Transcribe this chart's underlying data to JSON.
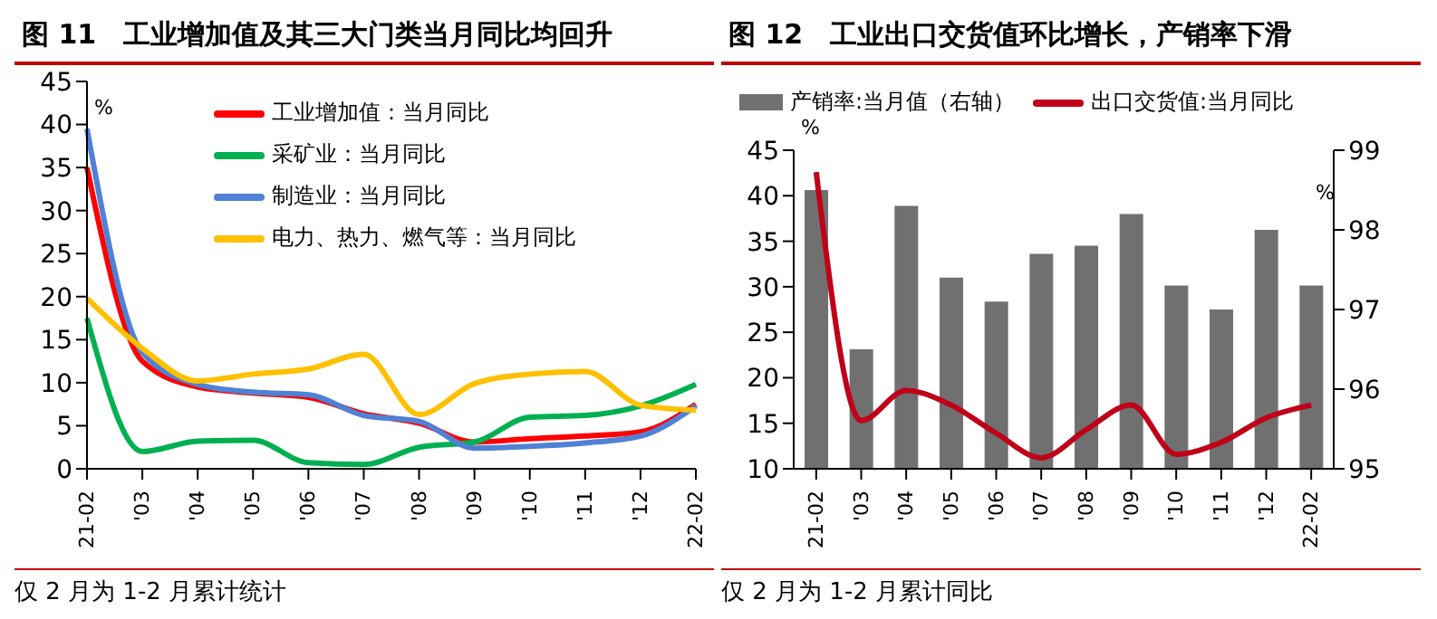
{
  "chart_data": [
    {
      "type": "line",
      "title": "图 11　工业增加值及其三大门类当月同比均回升",
      "ylabel": "%",
      "categories": [
        "21-02",
        "'03",
        "'04",
        "'05",
        "'06",
        "'07",
        "'08",
        "'09",
        "'10",
        "'11",
        "'12",
        "22-02"
      ],
      "ylim": [
        0,
        45
      ],
      "yticks": [
        0,
        5,
        10,
        15,
        20,
        25,
        30,
        35,
        40,
        45
      ],
      "legend": "top right",
      "marker": "none",
      "series": [
        {
          "name": "工业增加值：当月同比",
          "color": "#ff0000",
          "values": [
            35,
            12.5,
            9.5,
            8.8,
            8.3,
            6.4,
            5.3,
            3.1,
            3.5,
            3.8,
            4.3,
            7.5
          ]
        },
        {
          "name": "采矿业：当月同比",
          "color": "#00b050",
          "values": [
            17.5,
            2,
            3.2,
            3.3,
            0.7,
            0.5,
            2.5,
            3.1,
            6,
            6.2,
            7.3,
            9.8
          ]
        },
        {
          "name": "制造业：当月同比",
          "color": "#4f81d5",
          "values": [
            39.5,
            13.5,
            9.8,
            8.9,
            8.6,
            6.2,
            5.5,
            2.4,
            2.6,
            3,
            3.8,
            7.3
          ]
        },
        {
          "name": "电力、热力、燃气等：当月同比",
          "color": "#ffc000",
          "values": [
            19.8,
            14,
            10.2,
            11,
            11.6,
            13.3,
            6.3,
            9.9,
            11,
            11.3,
            7.4,
            6.8
          ]
        }
      ],
      "annotations": [
        "仅 2 月为 1-2 月累计统计"
      ]
    },
    {
      "type": "bar",
      "title": "图 12　工业出口交货值环比增长，产销率下滑",
      "ylabel": "%",
      "y2label": "%",
      "categories": [
        "21-02",
        "'03",
        "'04",
        "'05",
        "'06",
        "'07",
        "'08",
        "'09",
        "'10",
        "'11",
        "'12",
        "22-02"
      ],
      "ylim": [
        10,
        45
      ],
      "yticks": [
        10,
        15,
        20,
        25,
        30,
        35,
        40,
        45
      ],
      "y2lim": [
        95,
        99
      ],
      "y2ticks": [
        95,
        96,
        97,
        98,
        99
      ],
      "legend": "top",
      "marker": "none",
      "series": [
        {
          "name": "产销率:当月值（右轴）",
          "type": "bar",
          "axis": "y2",
          "color": "#707070",
          "values": [
            98.5,
            96.5,
            98.3,
            97.4,
            97.1,
            97.7,
            97.8,
            98.2,
            97.3,
            97,
            98,
            97.3
          ]
        },
        {
          "name": "出口交货值:当月同比",
          "type": "line",
          "color": "#c00018",
          "values": [
            42.6,
            15.3,
            18.6,
            17,
            13.9,
            11.2,
            14.3,
            17,
            11.6,
            12.9,
            15.6,
            17
          ]
        }
      ],
      "annotations": [
        "仅 2 月为 1-2 月累计同比"
      ]
    }
  ]
}
